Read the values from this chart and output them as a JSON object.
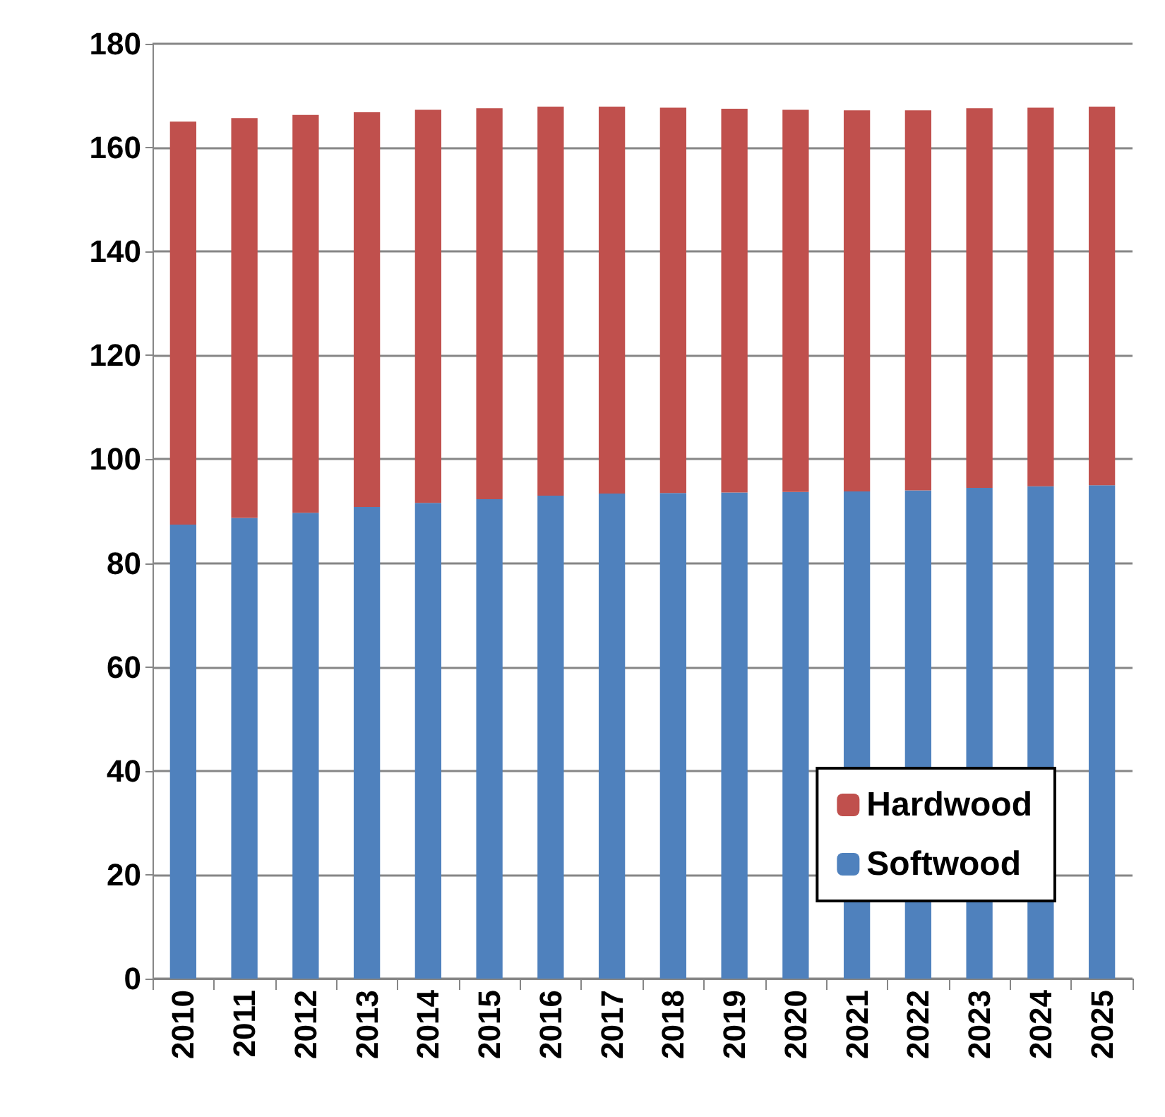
{
  "chart_data": {
    "type": "bar",
    "stacked": true,
    "categories": [
      "2010",
      "2011",
      "2012",
      "2013",
      "2014",
      "2015",
      "2016",
      "2017",
      "2018",
      "2019",
      "2020",
      "2021",
      "2022",
      "2023",
      "2024",
      "2025"
    ],
    "series": [
      {
        "name": "Softwood",
        "color": "#4f81bd",
        "values": [
          87.4,
          88.7,
          89.7,
          90.8,
          91.6,
          92.3,
          93.0,
          93.4,
          93.5,
          93.6,
          93.7,
          93.8,
          94.0,
          94.5,
          94.8,
          95.0
        ]
      },
      {
        "name": "Hardwood",
        "color": "#c0504d",
        "values": [
          77.6,
          77.0,
          76.6,
          76.0,
          75.7,
          75.3,
          74.9,
          74.5,
          74.2,
          73.9,
          73.6,
          73.4,
          73.2,
          73.1,
          72.9,
          72.9
        ]
      }
    ],
    "ylim": [
      0,
      180
    ],
    "yticks": [
      0,
      20,
      40,
      60,
      80,
      100,
      120,
      140,
      160,
      180
    ],
    "grid": "y",
    "legend": "bottom right"
  }
}
